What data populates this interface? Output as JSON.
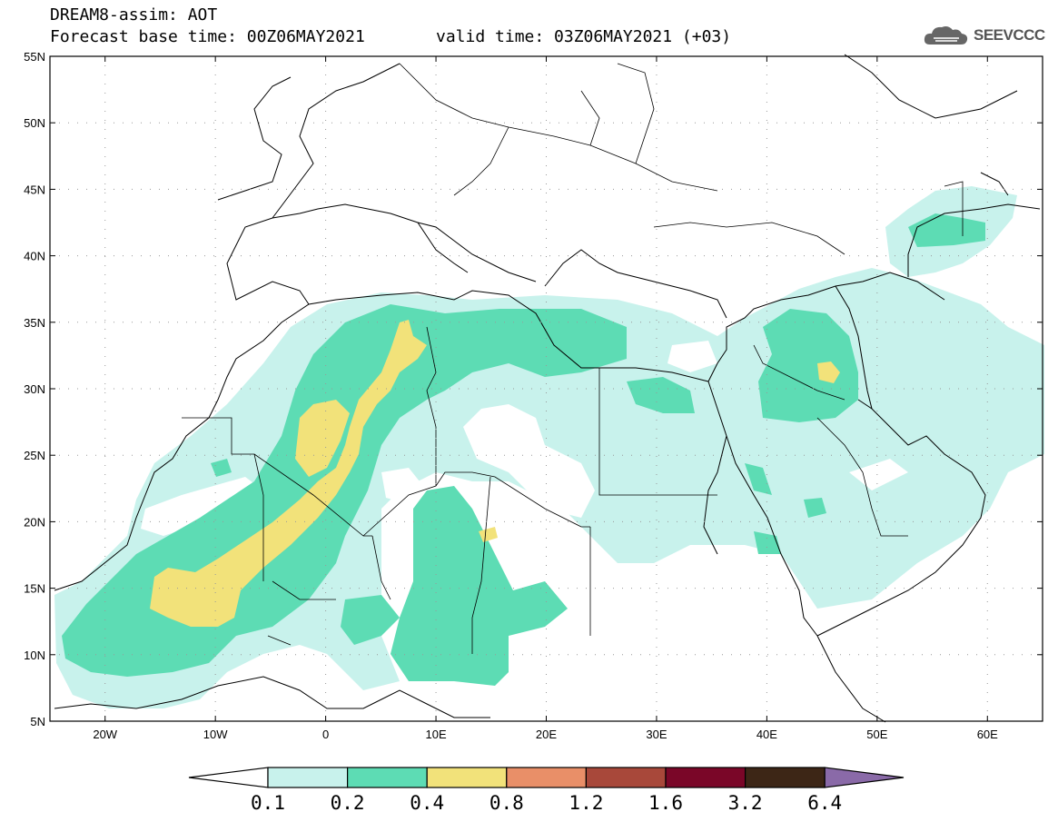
{
  "title": {
    "model": "DREAM8-assim: AOT",
    "base_time": "Forecast base time: 00Z06MAY2021",
    "valid_time": "valid time: 03Z06MAY2021 (+03)"
  },
  "logo": {
    "text": "SEEVCCC",
    "icon": "cloud-icon"
  },
  "axes": {
    "lat_labels": [
      "55N",
      "50N",
      "45N",
      "40N",
      "35N",
      "30N",
      "25N",
      "20N",
      "15N",
      "10N",
      "5N"
    ],
    "lon_labels": [
      "20W",
      "10W",
      "0",
      "10E",
      "20E",
      "30E",
      "40E",
      "50E",
      "60E"
    ],
    "lat_range": [
      5,
      55
    ],
    "lon_range": [
      -25,
      65
    ]
  },
  "colorbar": {
    "labels": [
      "0.1",
      "0.2",
      "0.4",
      "0.8",
      "1.2",
      "1.6",
      "3.2",
      "6.4"
    ],
    "colors": [
      "#ffffff",
      "#c8f2ec",
      "#5ddcb4",
      "#f2e27a",
      "#e98f68",
      "#a8483a",
      "#7a0628",
      "#3d2616",
      "#8a6aa8"
    ]
  },
  "fields": {
    "low_color": "#c8f2ec",
    "mid_color": "#5ddcb4",
    "high_color": "#f2e27a",
    "line_color": "#000000"
  }
}
